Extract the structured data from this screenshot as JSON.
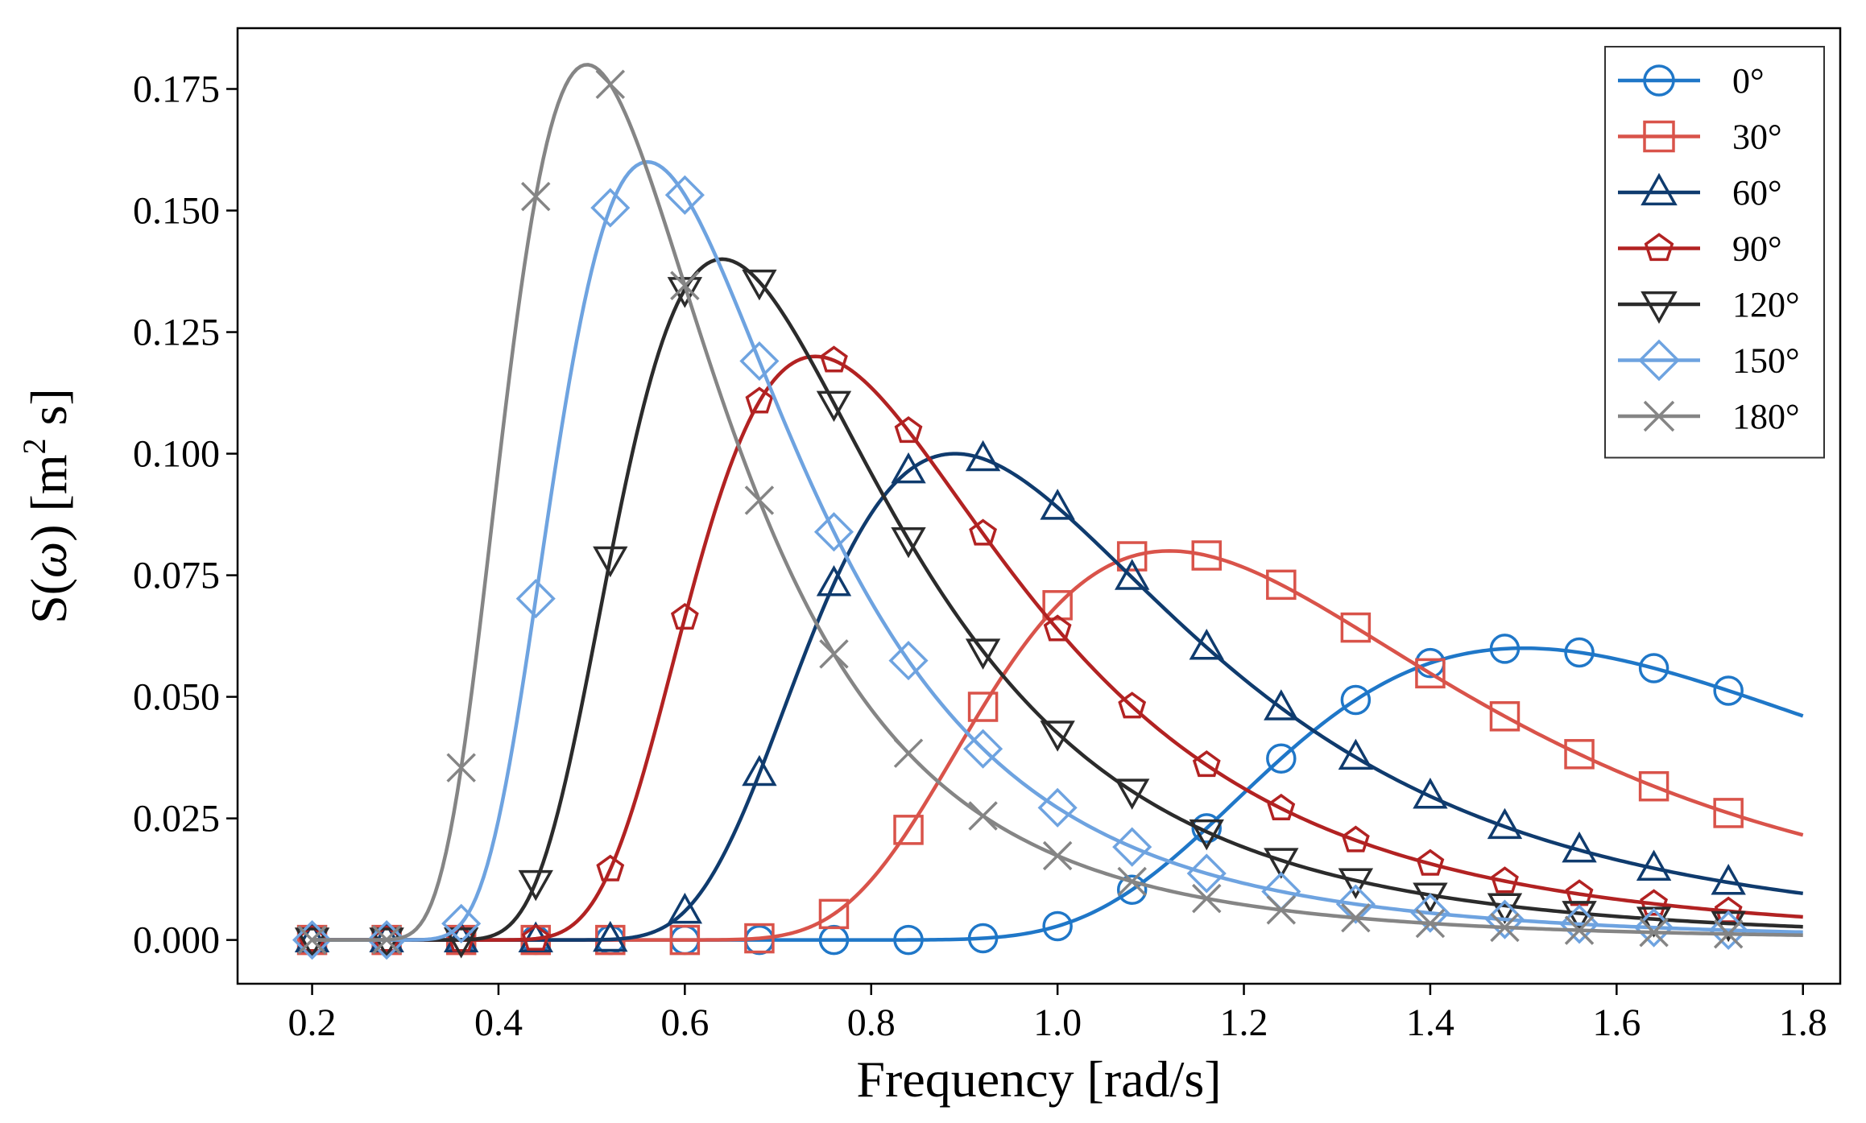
{
  "chart_data": {
    "type": "line",
    "title": "",
    "xlabel": "Frequency [rad/s]",
    "ylabel": "S(ω) [m² s]",
    "ylabel_parts": {
      "pre": "S(",
      "omega": "ω",
      "mid": ") [m",
      "sup": "2",
      "post": " s]"
    },
    "xlim": [
      0.12,
      1.84
    ],
    "ylim": [
      -0.009,
      0.1875
    ],
    "xticks": [
      0.2,
      0.4,
      0.6,
      0.8,
      1.0,
      1.2,
      1.4,
      1.6,
      1.8
    ],
    "xtick_labels": [
      "0.2",
      "0.4",
      "0.6",
      "0.8",
      "1.0",
      "1.2",
      "1.4",
      "1.6",
      "1.8"
    ],
    "yticks": [
      0.0,
      0.025,
      0.05,
      0.075,
      0.1,
      0.125,
      0.15,
      0.175
    ],
    "ytick_labels": [
      "0.000",
      "0.025",
      "0.050",
      "0.075",
      "0.100",
      "0.125",
      "0.150",
      "0.175"
    ],
    "grid": false,
    "legend_position": "top-right",
    "curve_x_range": [
      0.2,
      1.8
    ],
    "marker_x": [
      0.2,
      0.28,
      0.36,
      0.44,
      0.52,
      0.6,
      0.68,
      0.76,
      0.84,
      0.92,
      1.0,
      1.08,
      1.16,
      1.24,
      1.32,
      1.4,
      1.48,
      1.56,
      1.64,
      1.72
    ],
    "series": [
      {
        "name": "0°",
        "peak_frequency": 1.5,
        "peak_value": 0.06,
        "color": "#1f77c8",
        "marker": "circle"
      },
      {
        "name": "30°",
        "peak_frequency": 1.12,
        "peak_value": 0.08,
        "color": "#d9534a",
        "marker": "square"
      },
      {
        "name": "60°",
        "peak_frequency": 0.89,
        "peak_value": 0.1,
        "color": "#0f3b6e",
        "marker": "triangle-up"
      },
      {
        "name": "90°",
        "peak_frequency": 0.74,
        "peak_value": 0.12,
        "color": "#b22222",
        "marker": "pentagon"
      },
      {
        "name": "120°",
        "peak_frequency": 0.64,
        "peak_value": 0.14,
        "color": "#2b2b2b",
        "marker": "triangle-down"
      },
      {
        "name": "150°",
        "peak_frequency": 0.56,
        "peak_value": 0.16,
        "color": "#6ea3e0",
        "marker": "diamond"
      },
      {
        "name": "180°",
        "peak_frequency": 0.495,
        "peak_value": 0.18,
        "color": "#858585",
        "marker": "x"
      }
    ]
  }
}
